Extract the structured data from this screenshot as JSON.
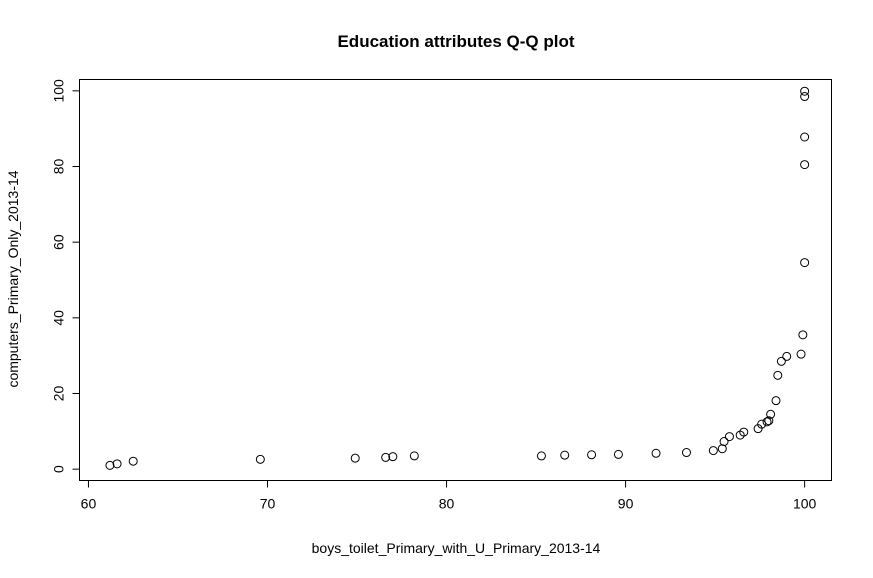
{
  "chart_data": {
    "type": "scatter",
    "title": "Education attributes Q-Q plot",
    "xlabel": "boys_toilet_Primary_with_U_Primary_2013-14",
    "ylabel": "computers_Primary_Only_2013-14",
    "xlim": [
      59.5,
      101.5
    ],
    "ylim": [
      -3,
      103
    ],
    "xticks": [
      60,
      70,
      80,
      90,
      100
    ],
    "yticks": [
      0,
      20,
      40,
      60,
      80,
      100
    ],
    "grid": false,
    "legend": "none",
    "points": [
      {
        "x": 61.2,
        "y": 1.0
      },
      {
        "x": 61.6,
        "y": 1.4
      },
      {
        "x": 62.5,
        "y": 2.1
      },
      {
        "x": 69.6,
        "y": 2.6
      },
      {
        "x": 74.9,
        "y": 2.9
      },
      {
        "x": 76.6,
        "y": 3.1
      },
      {
        "x": 77.0,
        "y": 3.3
      },
      {
        "x": 78.2,
        "y": 3.5
      },
      {
        "x": 85.3,
        "y": 3.5
      },
      {
        "x": 86.6,
        "y": 3.7
      },
      {
        "x": 88.1,
        "y": 3.8
      },
      {
        "x": 89.6,
        "y": 3.9
      },
      {
        "x": 91.7,
        "y": 4.2
      },
      {
        "x": 93.4,
        "y": 4.4
      },
      {
        "x": 94.9,
        "y": 4.9
      },
      {
        "x": 95.4,
        "y": 5.4
      },
      {
        "x": 95.5,
        "y": 7.3
      },
      {
        "x": 95.8,
        "y": 8.6
      },
      {
        "x": 96.4,
        "y": 9.0
      },
      {
        "x": 96.6,
        "y": 9.8
      },
      {
        "x": 97.4,
        "y": 10.7
      },
      {
        "x": 97.6,
        "y": 11.9
      },
      {
        "x": 97.9,
        "y": 12.5
      },
      {
        "x": 98.0,
        "y": 12.8
      },
      {
        "x": 98.1,
        "y": 14.5
      },
      {
        "x": 98.4,
        "y": 18.1
      },
      {
        "x": 98.5,
        "y": 24.8
      },
      {
        "x": 98.7,
        "y": 28.5
      },
      {
        "x": 99.0,
        "y": 29.8
      },
      {
        "x": 99.8,
        "y": 30.4
      },
      {
        "x": 99.9,
        "y": 35.5
      },
      {
        "x": 100.0,
        "y": 54.6
      },
      {
        "x": 100.0,
        "y": 80.5
      },
      {
        "x": 100.0,
        "y": 87.8
      },
      {
        "x": 100.0,
        "y": 98.5
      },
      {
        "x": 100.0,
        "y": 99.9
      }
    ]
  }
}
